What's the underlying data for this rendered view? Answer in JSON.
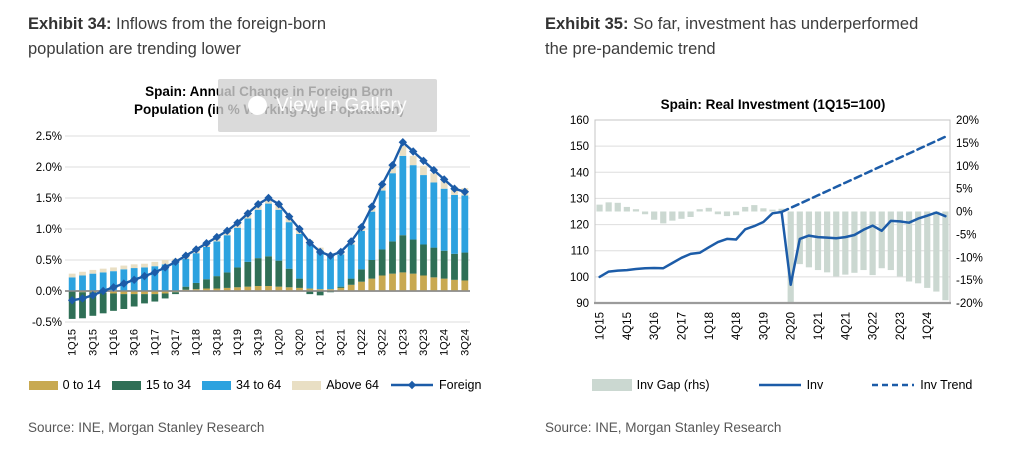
{
  "page": {
    "background": "#ffffff"
  },
  "exhibit34": {
    "heading_bold": "Exhibit 34:",
    "heading_rest": " Inflows from the foreign-born population are trending lower",
    "overlay_label": "View in Gallery",
    "source": "Source: INE, Morgan Stanley Research"
  },
  "exhibit35": {
    "heading_bold": "Exhibit 35:",
    "heading_rest": " So far, investment has underperformed the pre-pandemic trend",
    "source": "Source: INE, Morgan Stanley Research"
  },
  "chart_data": [
    {
      "type": "bar",
      "subtype": "stacked-bars-with-line",
      "title_line1": "Spain: Annual Change in Foreign Born",
      "title_line2": "Population (in % Working Age Population)",
      "categories": [
        "1Q15",
        "2Q15",
        "3Q15",
        "4Q15",
        "1Q16",
        "2Q16",
        "3Q16",
        "4Q16",
        "1Q17",
        "2Q17",
        "3Q17",
        "4Q17",
        "1Q18",
        "2Q18",
        "3Q18",
        "4Q18",
        "1Q19",
        "2Q19",
        "3Q19",
        "4Q19",
        "1Q20",
        "2Q20",
        "3Q20",
        "4Q20",
        "1Q21",
        "2Q21",
        "3Q21",
        "4Q21",
        "1Q22",
        "2Q22",
        "3Q22",
        "4Q22",
        "1Q23",
        "2Q23",
        "3Q23",
        "4Q23",
        "1Q24",
        "2Q24",
        "3Q24"
      ],
      "x_label_every": 2,
      "ylim": [
        -0.5,
        2.5
      ],
      "grid": "horizontal",
      "legend_position": "bottom",
      "yticks": [
        {
          "v": 2.5,
          "label": "2.5%"
        },
        {
          "v": 2.0,
          "label": "2.0%"
        },
        {
          "v": 1.5,
          "label": "1.5%"
        },
        {
          "v": 1.0,
          "label": "1.0%"
        },
        {
          "v": 0.5,
          "label": "0.5%"
        },
        {
          "v": 0.0,
          "label": "0.0%"
        },
        {
          "v": -0.5,
          "label": "-0.5%"
        }
      ],
      "series": [
        {
          "name": "0 to 14",
          "type": "bar",
          "color": "#C8A951",
          "values": [
            0.0,
            -0.02,
            -0.02,
            -0.03,
            -0.04,
            -0.05,
            -0.05,
            -0.05,
            -0.05,
            -0.04,
            -0.02,
            0.02,
            0.03,
            0.04,
            0.04,
            0.05,
            0.06,
            0.07,
            0.08,
            0.08,
            0.07,
            0.06,
            0.05,
            0.04,
            0.03,
            0.03,
            0.05,
            0.1,
            0.15,
            0.2,
            0.25,
            0.28,
            0.3,
            0.28,
            0.25,
            0.22,
            0.2,
            0.18,
            0.17
          ]
        },
        {
          "name": "15 to 34",
          "type": "bar",
          "color": "#2F6F56",
          "values": [
            -0.45,
            -0.42,
            -0.38,
            -0.33,
            -0.28,
            -0.24,
            -0.2,
            -0.15,
            -0.12,
            -0.08,
            -0.03,
            0.05,
            0.1,
            0.15,
            0.2,
            0.25,
            0.32,
            0.4,
            0.45,
            0.48,
            0.42,
            0.3,
            0.15,
            -0.05,
            -0.07,
            -0.02,
            0.02,
            0.1,
            0.2,
            0.3,
            0.42,
            0.52,
            0.6,
            0.55,
            0.5,
            0.48,
            0.45,
            0.42,
            0.45
          ]
        },
        {
          "name": "34 to 64",
          "type": "bar",
          "color": "#2CA2DF",
          "values": [
            0.22,
            0.25,
            0.28,
            0.3,
            0.32,
            0.35,
            0.37,
            0.38,
            0.4,
            0.43,
            0.45,
            0.45,
            0.48,
            0.52,
            0.56,
            0.6,
            0.64,
            0.7,
            0.78,
            0.85,
            0.82,
            0.75,
            0.72,
            0.72,
            0.62,
            0.52,
            0.52,
            0.55,
            0.62,
            0.78,
            0.95,
            1.1,
            1.28,
            1.2,
            1.12,
            1.05,
            1.0,
            0.95,
            0.92
          ]
        },
        {
          "name": "Above 64",
          "type": "bar",
          "color": "#E9DFC4",
          "values": [
            0.06,
            0.06,
            0.06,
            0.06,
            0.06,
            0.06,
            0.06,
            0.06,
            0.07,
            0.07,
            0.07,
            0.05,
            0.06,
            0.06,
            0.07,
            0.07,
            0.08,
            0.08,
            0.09,
            0.09,
            0.09,
            0.08,
            0.07,
            0.06,
            0.05,
            0.04,
            0.04,
            0.05,
            0.06,
            0.08,
            0.1,
            0.13,
            0.16,
            0.15,
            0.15,
            0.15,
            0.14,
            0.13,
            0.12
          ]
        },
        {
          "name": "Foreign",
          "type": "line",
          "marker": "diamond",
          "color": "#1C5CA8",
          "values": [
            -0.15,
            -0.12,
            -0.07,
            0.0,
            0.06,
            0.12,
            0.18,
            0.24,
            0.3,
            0.38,
            0.47,
            0.57,
            0.67,
            0.77,
            0.87,
            0.97,
            1.1,
            1.25,
            1.4,
            1.5,
            1.4,
            1.2,
            1.0,
            0.78,
            0.63,
            0.57,
            0.63,
            0.8,
            1.03,
            1.36,
            1.72,
            2.03,
            2.4,
            2.25,
            2.1,
            1.95,
            1.8,
            1.65,
            1.6
          ]
        }
      ]
    },
    {
      "type": "line",
      "subtype": "dual-axis-lines-with-gap-bars",
      "title_line1": "Spain: Real Investment (1Q15=100)",
      "categories": [
        "1Q15",
        "2Q15",
        "3Q15",
        "4Q15",
        "1Q16",
        "2Q16",
        "3Q16",
        "4Q16",
        "1Q17",
        "2Q17",
        "3Q17",
        "4Q17",
        "1Q18",
        "2Q18",
        "3Q18",
        "4Q18",
        "1Q19",
        "2Q19",
        "3Q19",
        "4Q19",
        "1Q20",
        "2Q20",
        "3Q20",
        "4Q20",
        "1Q21",
        "2Q21",
        "3Q21",
        "4Q21",
        "1Q22",
        "2Q22",
        "3Q22",
        "4Q22",
        "1Q23",
        "2Q23",
        "3Q23",
        "4Q23",
        "1Q24",
        "2Q24",
        "3Q24"
      ],
      "x_label_every": 3,
      "grid": "horizontal",
      "legend_position": "bottom",
      "left_axis": {
        "lim": [
          90,
          160
        ],
        "ticks": [
          160,
          150,
          140,
          130,
          120,
          110,
          100,
          90
        ]
      },
      "right_axis": {
        "lim": [
          -20,
          20
        ],
        "ticks": [
          {
            "v": 20,
            "label": "20%"
          },
          {
            "v": 15,
            "label": "15%"
          },
          {
            "v": 10,
            "label": "10%"
          },
          {
            "v": 5,
            "label": "5%"
          },
          {
            "v": 0,
            "label": "0%"
          },
          {
            "v": -5,
            "label": "-5%"
          },
          {
            "v": -10,
            "label": "-10%"
          },
          {
            "v": -15,
            "label": "-15%"
          },
          {
            "v": -20,
            "label": "-20%"
          }
        ]
      },
      "series": [
        {
          "name": "Inv Gap (rhs)",
          "type": "bar",
          "axis": "right",
          "color": "#CBD8D1",
          "values": [
            1.5,
            2.0,
            1.9,
            1.0,
            0.5,
            -0.6,
            -1.8,
            -2.6,
            -2.0,
            -1.6,
            -1.2,
            0.5,
            0.8,
            -0.6,
            -1.0,
            -0.8,
            1.0,
            1.4,
            0.7,
            0.4,
            0.6,
            -19.8,
            -11.5,
            -12.2,
            -12.8,
            -13.3,
            -14.2,
            -13.8,
            -13.4,
            -12.8,
            -13.9,
            -12.4,
            -12.8,
            -14.2,
            -15.3,
            -15.7,
            -16.7,
            -17.5,
            -19.4
          ]
        },
        {
          "name": "Inv",
          "type": "line",
          "axis": "left",
          "color": "#1C5CA8",
          "values": [
            100,
            102,
            102.4,
            102.6,
            103,
            103.3,
            103.4,
            103.3,
            105.3,
            107.3,
            108.8,
            109.2,
            111.3,
            113.3,
            114.5,
            114.3,
            118.2,
            119.4,
            121.0,
            124.3,
            124.8,
            97.0,
            114.5,
            115.8,
            115.2,
            115.0,
            114.8,
            115.2,
            116.0,
            118.0,
            119.6,
            117.6,
            121.4,
            121.2,
            120.7,
            122.3,
            123.4,
            124.6,
            123.2
          ]
        },
        {
          "name": "Inv Trend",
          "type": "line",
          "axis": "left",
          "dashed": true,
          "color": "#1C5CA8",
          "values": [
            null,
            null,
            null,
            null,
            null,
            null,
            null,
            null,
            null,
            null,
            null,
            null,
            null,
            null,
            null,
            null,
            null,
            null,
            null,
            null,
            124.8,
            126.4,
            128.0,
            129.6,
            131.2,
            132.8,
            134.4,
            136.0,
            137.6,
            139.2,
            140.8,
            142.4,
            144.0,
            145.6,
            147.2,
            148.8,
            150.4,
            152.0,
            153.6
          ]
        }
      ]
    }
  ]
}
